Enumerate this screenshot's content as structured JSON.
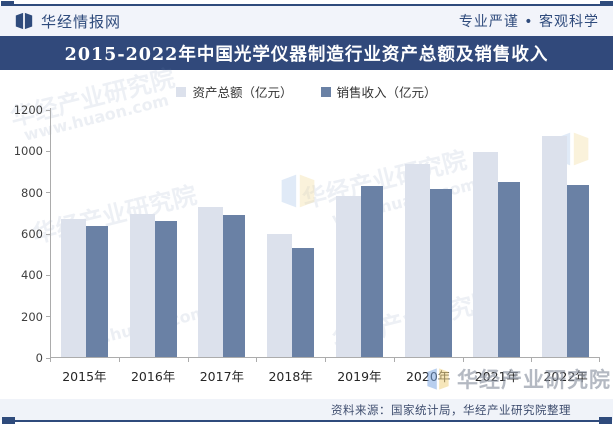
{
  "header": {
    "brand": "华经情报网",
    "tagline": "专业严谨 • 客观科学"
  },
  "title": "2015-2022年中国光学仪器制造行业资产总额及销售收入",
  "chart_data": {
    "type": "bar",
    "categories": [
      "2015年",
      "2016年",
      "2017年",
      "2018年",
      "2019年",
      "2020年",
      "2021年",
      "2022年"
    ],
    "series": [
      {
        "name": "资产总额（亿元）",
        "color": "#DCE1EC",
        "values": [
          668,
          694,
          728,
          597,
          780,
          934,
          991,
          1068
        ]
      },
      {
        "name": "销售收入（亿元）",
        "color": "#6A81A5",
        "values": [
          632,
          660,
          686,
          529,
          828,
          811,
          848,
          833
        ]
      }
    ],
    "ylim": [
      0,
      1200
    ],
    "ytick_step": 200,
    "grid": false,
    "legend_position": "top-center"
  },
  "footer": {
    "source": "资料来源：国家统计局，华经产业研究院整理"
  },
  "watermark": {
    "brand": "华经产业研究院",
    "url": "www.huaon.com"
  },
  "colors": {
    "accent_navy": "#2F4B7C",
    "banner_bg": "#31497B",
    "series_assets": "#DCE1EC",
    "series_revenue": "#6A81A5",
    "strip_bg": "#F2F4FA",
    "axis": "#ACACAC"
  }
}
